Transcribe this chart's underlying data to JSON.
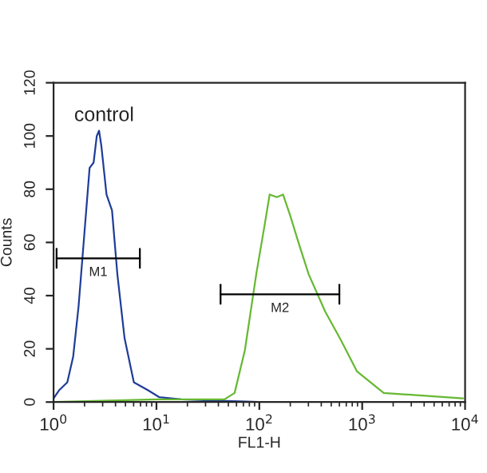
{
  "chart_data": {
    "type": "line",
    "xlabel": "FL1-H",
    "ylabel": "Counts",
    "log": "x",
    "xlim": [
      1,
      10000
    ],
    "ylim": [
      0,
      120
    ],
    "xticks": [
      {
        "value": 1,
        "label": "10$^{0}$"
      },
      {
        "value": 10,
        "label": "10$^{1}$"
      },
      {
        "value": 100,
        "label": "10$^{2}$"
      },
      {
        "value": 1000,
        "label": "10$^{3}$"
      },
      {
        "value": 10000,
        "label": "10$^{4}$"
      }
    ],
    "yticks": [
      0,
      20,
      40,
      60,
      80,
      100,
      120
    ],
    "grid": false,
    "legend": false,
    "series": [
      {
        "color": "#1f3d99",
        "x": [
          1,
          1.13,
          1.36,
          1.55,
          1.75,
          1.98,
          2.24,
          2.45,
          2.63,
          2.77,
          2.92,
          3.27,
          3.7,
          4.17,
          4.9,
          6.03,
          8.3,
          10.7,
          17.4,
          100,
          1000,
          10000
        ],
        "values": [
          1.4,
          4.4,
          7.4,
          17,
          36,
          62,
          88,
          90,
          100,
          102,
          96,
          78,
          72,
          48,
          24,
          7.4,
          4.4,
          1.8,
          1,
          0,
          0,
          0
        ]
      },
      {
        "color": "#66b832",
        "x": [
          1,
          10,
          45.7,
          57.5,
          72.4,
          93.3,
          112,
          126,
          148,
          170,
          200,
          240,
          302,
          437,
          617,
          891,
          1620,
          9550
        ],
        "values": [
          0,
          1,
          1,
          3.4,
          19.5,
          48,
          66,
          78,
          77,
          78,
          70,
          60,
          48,
          34,
          23.5,
          11.5,
          3.4,
          1.4
        ]
      },
      {
        "color": "#000000",
        "x": [
          1.07,
          6.9
        ],
        "values": [
          54,
          54
        ]
      },
      {
        "color": "#000000",
        "x": [
          42,
          600
        ],
        "values": [
          40.5,
          40.5
        ]
      }
    ],
    "annotations": [
      "control",
      "M1",
      "M2"
    ]
  }
}
